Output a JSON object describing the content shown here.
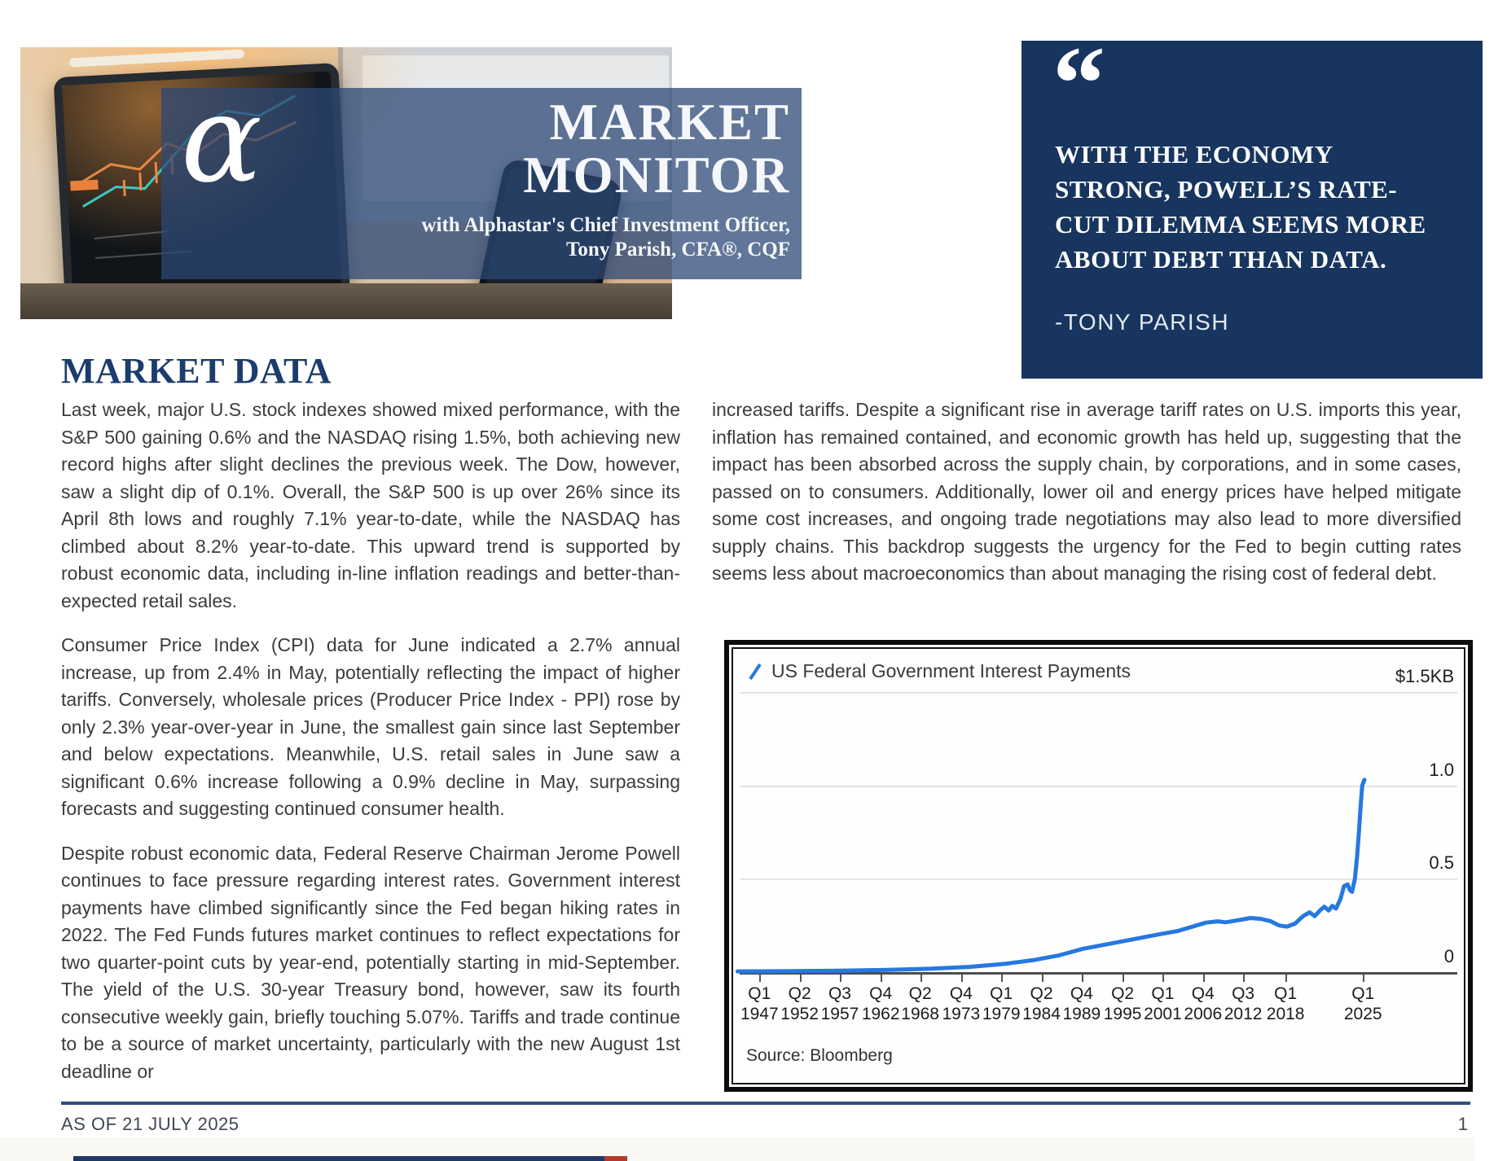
{
  "header": {
    "logo_glyph": "α",
    "title_line1": "MARKET",
    "title_line2": "MONITOR",
    "subtitle_line1": "with Alphastar's Chief Investment Officer,",
    "subtitle_line2": "Tony Parish, CFA®, CQF"
  },
  "quote": {
    "mark": "“",
    "lines": [
      "WITH THE ECONOMY",
      "STRONG, POWELL’S RATE-",
      "CUT DILEMMA SEEMS MORE",
      "ABOUT DEBT THAN DATA."
    ],
    "attribution": "-TONY PARISH"
  },
  "section": {
    "title": "MARKET DATA"
  },
  "columns": {
    "left": [
      "Last week, major U.S. stock indexes showed mixed performance, with the S&P 500 gaining 0.6% and the NASDAQ rising 1.5%, both achieving new record highs after slight declines the previous week. The Dow, however, saw a slight dip of 0.1%. Overall, the S&P 500 is up over 26% since its April 8th lows and roughly 7.1% year-to-date, while the NASDAQ has climbed about 8.2% year-to-date. This upward trend is supported by robust economic data, including in-line inflation readings and better-than-expected retail sales.",
      "Consumer Price Index (CPI) data for June indicated a 2.7% annual increase, up from 2.4% in May, potentially reflecting the impact of higher tariffs. Conversely, wholesale prices (Producer Price Index - PPI) rose by only 2.3% year-over-year in June, the smallest gain since last September and below expectations. Meanwhile, U.S. retail sales in June saw a significant 0.6% increase following a 0.9% decline in May, surpassing forecasts and suggesting continued consumer health.",
      "Despite robust economic data, Federal Reserve Chairman Jerome Powell continues to face pressure regarding interest rates. Government interest payments have climbed significantly since the Fed began hiking rates in 2022. The Fed Funds futures market continues to reflect expectations for two quarter-point cuts by year-end, potentially starting in mid-September. The yield of the U.S. 30-year Treasury bond, however, saw its fourth consecutive weekly gain, briefly touching 5.07%. Tariffs and trade continue to be a source of market uncertainty, particularly with the new August 1st deadline or"
    ],
    "right": [
      "increased tariffs. Despite a significant rise in average tariff rates on U.S. imports this year, inflation has remained contained, and economic growth has held up, suggesting that the impact has been absorbed across the supply chain, by corporations, and in some cases, passed on to consumers. Additionally, lower oil and energy prices have helped mitigate some cost increases, and ongoing trade negotiations may also lead to more diversified supply chains. This backdrop suggests the urgency for the Fed to begin cutting rates seems less about macroeconomics than about managing the rising cost of federal debt."
    ]
  },
  "chart_data": {
    "type": "line",
    "title": "US Federal Government Interest Payments",
    "legend": "US Federal Government Interest Payments",
    "legend_position": "top-left",
    "source": "Source: Bloomberg",
    "grid": true,
    "ylim": [
      0,
      1.55
    ],
    "y_unit": "trillion USD ($KB shorthand as shown)",
    "y_ticks": [
      {
        "label": "$1.5KB",
        "value": 1.5
      },
      {
        "label": "1.0",
        "value": 1.0
      },
      {
        "label": "0.5",
        "value": 0.5
      },
      {
        "label": "0",
        "value": 0
      }
    ],
    "x_ticks": [
      {
        "quarter": "Q1",
        "year": "1947",
        "pos": 0.036
      },
      {
        "quarter": "Q2",
        "year": "1952",
        "pos": 0.091
      },
      {
        "quarter": "Q3",
        "year": "1957",
        "pos": 0.146
      },
      {
        "quarter": "Q4",
        "year": "1962",
        "pos": 0.202
      },
      {
        "quarter": "Q2",
        "year": "1968",
        "pos": 0.256
      },
      {
        "quarter": "Q4",
        "year": "1973",
        "pos": 0.312
      },
      {
        "quarter": "Q1",
        "year": "1979",
        "pos": 0.367
      },
      {
        "quarter": "Q2",
        "year": "1984",
        "pos": 0.422
      },
      {
        "quarter": "Q4",
        "year": "1989",
        "pos": 0.477
      },
      {
        "quarter": "Q2",
        "year": "1995",
        "pos": 0.533
      },
      {
        "quarter": "Q1",
        "year": "2001",
        "pos": 0.588
      },
      {
        "quarter": "Q4",
        "year": "2006",
        "pos": 0.643
      },
      {
        "quarter": "Q3",
        "year": "2012",
        "pos": 0.698
      },
      {
        "quarter": "Q1",
        "year": "2018",
        "pos": 0.756
      },
      {
        "quarter": "Q1",
        "year": "2025",
        "pos": 0.862
      }
    ],
    "series": [
      {
        "name": "US Federal Government Interest Payments",
        "color": "#2678E0",
        "points": [
          [
            0.006,
            0.004
          ],
          [
            0.067,
            0.005
          ],
          [
            0.145,
            0.008
          ],
          [
            0.212,
            0.012
          ],
          [
            0.268,
            0.018
          ],
          [
            0.323,
            0.028
          ],
          [
            0.373,
            0.045
          ],
          [
            0.412,
            0.065
          ],
          [
            0.446,
            0.09
          ],
          [
            0.479,
            0.125
          ],
          [
            0.513,
            0.15
          ],
          [
            0.546,
            0.175
          ],
          [
            0.58,
            0.2
          ],
          [
            0.608,
            0.22
          ],
          [
            0.63,
            0.245
          ],
          [
            0.647,
            0.265
          ],
          [
            0.663,
            0.272
          ],
          [
            0.674,
            0.267
          ],
          [
            0.691,
            0.278
          ],
          [
            0.708,
            0.29
          ],
          [
            0.722,
            0.285
          ],
          [
            0.736,
            0.272
          ],
          [
            0.747,
            0.25
          ],
          [
            0.758,
            0.244
          ],
          [
            0.769,
            0.26
          ],
          [
            0.78,
            0.3
          ],
          [
            0.789,
            0.32
          ],
          [
            0.796,
            0.3
          ],
          [
            0.803,
            0.33
          ],
          [
            0.809,
            0.35
          ],
          [
            0.815,
            0.33
          ],
          [
            0.82,
            0.355
          ],
          [
            0.825,
            0.34
          ],
          [
            0.831,
            0.39
          ],
          [
            0.836,
            0.46
          ],
          [
            0.841,
            0.47
          ],
          [
            0.844,
            0.44
          ],
          [
            0.847,
            0.43
          ],
          [
            0.851,
            0.5
          ],
          [
            0.854,
            0.62
          ],
          [
            0.857,
            0.78
          ],
          [
            0.859,
            0.9
          ],
          [
            0.861,
            1.0
          ],
          [
            0.864,
            1.03
          ]
        ]
      }
    ]
  },
  "footer": {
    "as_of": "AS OF 21 JULY 2025",
    "page_number": "1"
  },
  "colors": {
    "quote_box": "#17355E",
    "banner_overlay": "rgba(44,72,118,0.75)",
    "heading_navy": "#1B3C6D",
    "footer_rule": "#2D4F7C",
    "line_series": "#2678E0",
    "bottom_bar_navy": "#1F3864",
    "bottom_bar_red": "#B03A2E"
  }
}
